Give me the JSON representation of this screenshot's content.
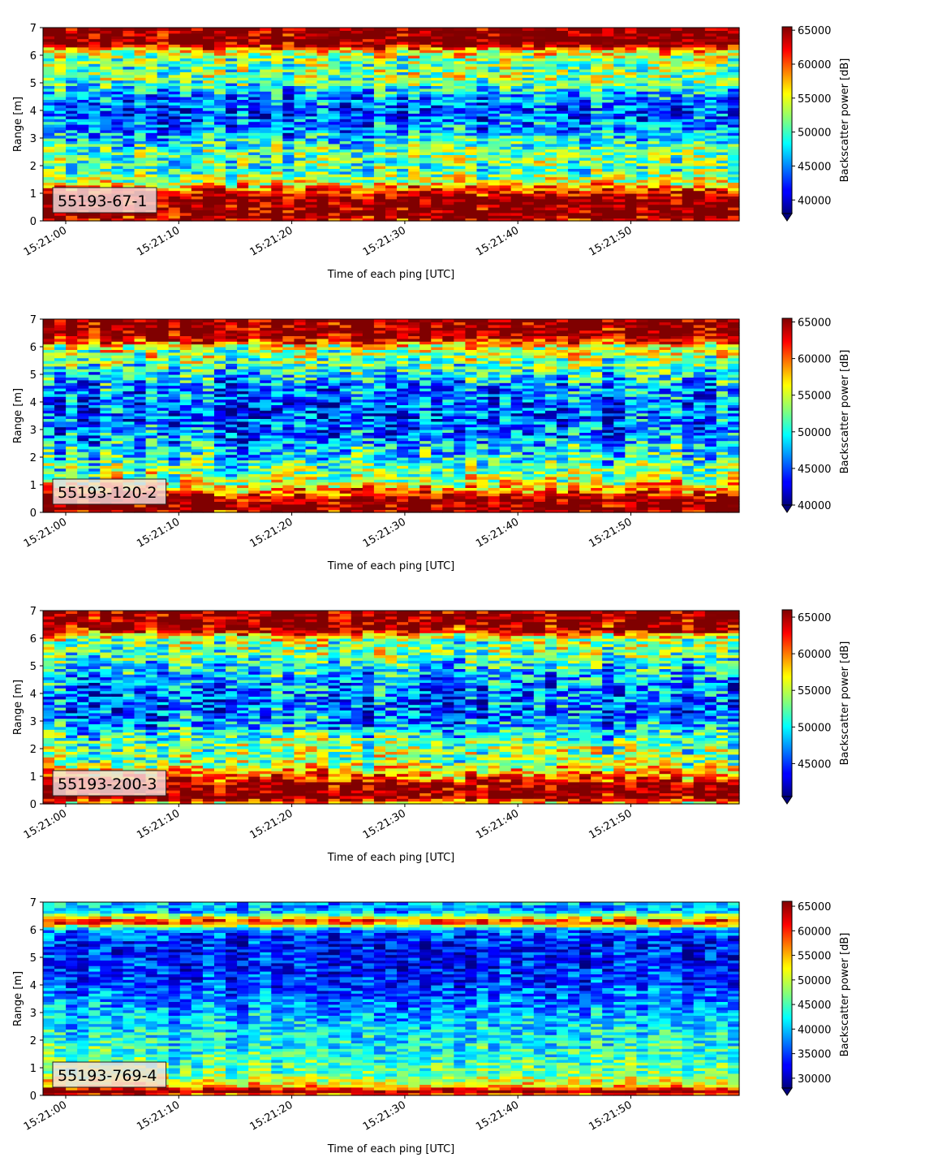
{
  "chart_data": [
    {
      "type": "heatmap",
      "label": "55193-67-1",
      "xlabel": "Time of each ping [UTC]",
      "ylabel": "Range [m]",
      "colorbar_label": "Backscatter power [dB]",
      "x_ticks": [
        "15:21:00",
        "15:21:10",
        "15:21:20",
        "15:21:30",
        "15:21:40",
        "15:21:50"
      ],
      "y_ticks": [
        0,
        1,
        2,
        3,
        4,
        5,
        6,
        7
      ],
      "ylim": [
        0,
        7
      ],
      "clim": [
        38000,
        65500
      ],
      "colorbar_ticks": [
        40000,
        45000,
        50000,
        55000,
        60000,
        65000
      ],
      "colormap": "jet",
      "colorbar_extend": "min",
      "profile": [
        {
          "range": 0.0,
          "value": 62000
        },
        {
          "range": 0.2,
          "value": 66000
        },
        {
          "range": 0.8,
          "value": 66000
        },
        {
          "range": 1.1,
          "value": 61000
        },
        {
          "range": 1.3,
          "value": 56000
        },
        {
          "range": 1.8,
          "value": 50000
        },
        {
          "range": 2.5,
          "value": 51000
        },
        {
          "range": 3.2,
          "value": 46000
        },
        {
          "range": 4.0,
          "value": 43000
        },
        {
          "range": 4.6,
          "value": 46000
        },
        {
          "range": 5.2,
          "value": 52000
        },
        {
          "range": 5.8,
          "value": 51000
        },
        {
          "range": 6.2,
          "value": 56000
        },
        {
          "range": 6.4,
          "value": 66000
        },
        {
          "range": 7.0,
          "value": 66000
        }
      ]
    },
    {
      "type": "heatmap",
      "label": "55193-120-2",
      "xlabel": "Time of each ping [UTC]",
      "ylabel": "Range [m]",
      "colorbar_label": "Backscatter power [dB]",
      "x_ticks": [
        "15:21:00",
        "15:21:10",
        "15:21:20",
        "15:21:30",
        "15:21:40",
        "15:21:50"
      ],
      "y_ticks": [
        0,
        1,
        2,
        3,
        4,
        5,
        6,
        7
      ],
      "ylim": [
        0,
        7
      ],
      "clim": [
        40000,
        65500
      ],
      "colorbar_ticks": [
        40000,
        45000,
        50000,
        55000,
        60000,
        65000
      ],
      "colormap": "jet",
      "colorbar_extend": "min",
      "profile": [
        {
          "range": 0.0,
          "value": 62000
        },
        {
          "range": 0.1,
          "value": 66000
        },
        {
          "range": 0.5,
          "value": 66000
        },
        {
          "range": 0.8,
          "value": 59000
        },
        {
          "range": 1.2,
          "value": 54000
        },
        {
          "range": 2.0,
          "value": 50000
        },
        {
          "range": 3.0,
          "value": 46000
        },
        {
          "range": 3.8,
          "value": 45000
        },
        {
          "range": 4.6,
          "value": 47000
        },
        {
          "range": 5.4,
          "value": 52000
        },
        {
          "range": 6.0,
          "value": 55000
        },
        {
          "range": 6.3,
          "value": 64000
        },
        {
          "range": 6.5,
          "value": 66000
        },
        {
          "range": 7.0,
          "value": 66000
        }
      ]
    },
    {
      "type": "heatmap",
      "label": "55193-200-3",
      "xlabel": "Time of each ping [UTC]",
      "ylabel": "Range [m]",
      "colorbar_label": "Backscatter power [dB]",
      "x_ticks": [
        "15:21:00",
        "15:21:10",
        "15:21:20",
        "15:21:30",
        "15:21:40",
        "15:21:50"
      ],
      "y_ticks": [
        0,
        1,
        2,
        3,
        4,
        5,
        6,
        7
      ],
      "ylim": [
        0,
        7
      ],
      "clim": [
        40500,
        66000
      ],
      "colorbar_ticks": [
        45000,
        50000,
        55000,
        60000,
        65000
      ],
      "colormap": "jet",
      "colorbar_extend": "min",
      "profile": [
        {
          "range": 0.0,
          "value": 56000
        },
        {
          "range": 0.2,
          "value": 66000
        },
        {
          "range": 0.7,
          "value": 66000
        },
        {
          "range": 1.0,
          "value": 60000
        },
        {
          "range": 1.5,
          "value": 54000
        },
        {
          "range": 2.2,
          "value": 53000
        },
        {
          "range": 3.0,
          "value": 47000
        },
        {
          "range": 3.8,
          "value": 46000
        },
        {
          "range": 4.6,
          "value": 48000
        },
        {
          "range": 5.3,
          "value": 52000
        },
        {
          "range": 6.0,
          "value": 54000
        },
        {
          "range": 6.3,
          "value": 64000
        },
        {
          "range": 6.5,
          "value": 66000
        },
        {
          "range": 7.0,
          "value": 66000
        }
      ]
    },
    {
      "type": "heatmap",
      "label": "55193-769-4",
      "xlabel": "Time of each ping [UTC]",
      "ylabel": "Range [m]",
      "colorbar_label": "Backscatter power [dB]",
      "x_ticks": [
        "15:21:00",
        "15:21:10",
        "15:21:20",
        "15:21:30",
        "15:21:40",
        "15:21:50"
      ],
      "y_ticks": [
        0,
        1,
        2,
        3,
        4,
        5,
        6,
        7
      ],
      "ylim": [
        0,
        7
      ],
      "clim": [
        28000,
        66000
      ],
      "colorbar_ticks": [
        30000,
        35000,
        40000,
        45000,
        50000,
        55000,
        60000,
        65000
      ],
      "colormap": "jet",
      "colorbar_extend": "min",
      "profile": [
        {
          "range": 0.0,
          "value": 55000
        },
        {
          "range": 0.15,
          "value": 66000
        },
        {
          "range": 0.35,
          "value": 54000
        },
        {
          "range": 0.8,
          "value": 46000
        },
        {
          "range": 1.5,
          "value": 44000
        },
        {
          "range": 2.5,
          "value": 41000
        },
        {
          "range": 3.5,
          "value": 37000
        },
        {
          "range": 4.5,
          "value": 34000
        },
        {
          "range": 5.5,
          "value": 33000
        },
        {
          "range": 6.0,
          "value": 37000
        },
        {
          "range": 6.3,
          "value": 62000
        },
        {
          "range": 6.45,
          "value": 52000
        },
        {
          "range": 6.7,
          "value": 38000
        },
        {
          "range": 7.0,
          "value": 40000
        }
      ]
    }
  ]
}
